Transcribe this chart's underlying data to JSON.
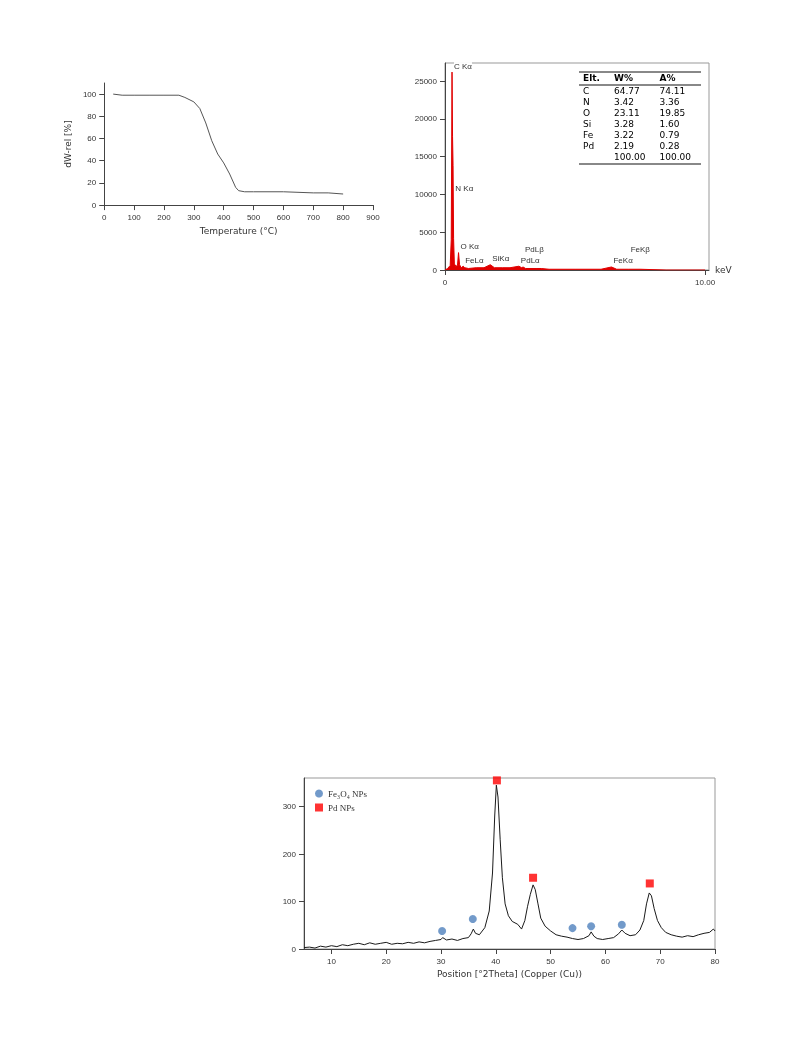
{
  "chart_data": [
    {
      "type": "line",
      "xlabel": "Temperature (°C)",
      "ylabel": "dW-rel [%]",
      "color": "#555555",
      "x": [
        30,
        60,
        100,
        150,
        200,
        250,
        270,
        300,
        320,
        340,
        360,
        380,
        400,
        420,
        440,
        450,
        470,
        500,
        600,
        700,
        750,
        800
      ],
      "values": [
        100,
        99,
        99,
        99,
        99,
        99,
        97,
        93,
        87,
        74,
        58,
        46,
        38,
        28,
        16,
        13,
        12,
        12,
        12,
        11,
        11,
        10
      ],
      "xlim": [
        0,
        900
      ],
      "xticks": [
        0,
        100,
        200,
        300,
        400,
        500,
        600,
        700,
        800,
        900
      ],
      "ylim": [
        0,
        110
      ],
      "yticks": [
        0,
        20,
        40,
        60,
        80,
        100
      ]
    },
    {
      "type": "area",
      "xlabel": "keV",
      "color": "#e00000",
      "x": [
        0,
        0.1,
        0.2,
        0.24,
        0.27,
        0.29,
        0.31,
        0.33,
        0.36,
        0.42,
        0.48,
        0.52,
        0.56,
        0.62,
        0.7,
        0.76,
        0.9,
        1.2,
        1.5,
        1.74,
        1.9,
        2.2,
        2.5,
        2.84,
        2.95,
        3.0,
        3.1,
        3.5,
        3.7,
        4,
        5,
        6,
        6.4,
        6.6,
        7.06,
        7.5,
        8.5,
        10
      ],
      "values": [
        0,
        200,
        600,
        4000,
        26200,
        17700,
        13800,
        4200,
        800,
        500,
        600,
        2300,
        700,
        300,
        500,
        300,
        200,
        300,
        300,
        700,
        300,
        300,
        300,
        500,
        300,
        400,
        200,
        200,
        200,
        100,
        100,
        100,
        400,
        100,
        100,
        100,
        0,
        0
      ],
      "xlim": [
        0,
        10.15
      ],
      "xticks": [
        0,
        {
          "value": 10,
          "label": "10.00"
        }
      ],
      "ylim": [
        0,
        27400
      ],
      "yticks": [
        0,
        5000,
        10000,
        15000,
        20000,
        25000
      ],
      "annotations": [
        {
          "text": "C Kα",
          "x": 0.27,
          "y": 26200
        },
        {
          "text": "N Kα",
          "x": 0.32,
          "y": 10000
        },
        {
          "text": "O Kα",
          "x": 0.52,
          "y": 2300
        },
        {
          "text": "FeLα",
          "x": 0.7,
          "y": 500
        },
        {
          "text": "SiKα",
          "x": 1.74,
          "y": 700
        },
        {
          "text": "PdLα",
          "x": 2.84,
          "y": 500
        },
        {
          "text": "PdLβ",
          "x": 3.0,
          "y": 400
        },
        {
          "text": "FeKα",
          "x": 6.4,
          "y": 400
        },
        {
          "text": "FeKβ",
          "x": 7.06,
          "y": 100
        },
        "Elt. W% A%",
        "C 64.77 74.11",
        "N 3.42 3.36",
        "O 23.11 19.85",
        "Si 3.28 1.60",
        "Fe 3.22 0.79",
        "Pd 2.19 0.28",
        "100.00 100.00"
      ]
    },
    {
      "type": "line",
      "xlabel": "Position [°2Theta] (Copper (Cu))",
      "legend": "top left",
      "xlim": [
        5,
        80
      ],
      "xticks": [
        10,
        20,
        30,
        40,
        50,
        60,
        70,
        80
      ],
      "ylim": [
        0,
        360
      ],
      "yticks": [
        0,
        100,
        200,
        300
      ],
      "series": [
        {
          "type": "line",
          "color": "#1a1a1a",
          "x": [
            5,
            6,
            7,
            8,
            9,
            10,
            11,
            12,
            13,
            14,
            15,
            16,
            17,
            18,
            19,
            20,
            21,
            22,
            23,
            24,
            25,
            26,
            27,
            28,
            29,
            30,
            30.3,
            31,
            32,
            33,
            34,
            35,
            35.5,
            35.9,
            36.3,
            37,
            38,
            38.8,
            39.4,
            39.8,
            40.1,
            40.4,
            40.8,
            41.2,
            41.7,
            42.3,
            43,
            44,
            44.7,
            45.3,
            45.8,
            46.3,
            46.8,
            47.2,
            47.7,
            48.2,
            49,
            50,
            51,
            52,
            53,
            54,
            55,
            56,
            57,
            57.4,
            57.9,
            58.5,
            59.5,
            60.5,
            61.5,
            62.4,
            63,
            63.6,
            64.5,
            65.5,
            66.3,
            67,
            67.5,
            68,
            68.4,
            68.9,
            69.5,
            70.2,
            71,
            72,
            73,
            74,
            75,
            76,
            77,
            78,
            79,
            79.7,
            80
          ],
          "values": [
            3,
            4,
            2,
            6,
            4,
            7,
            5,
            9,
            7,
            10,
            12,
            9,
            13,
            10,
            12,
            14,
            10,
            12,
            11,
            14,
            12,
            15,
            13,
            16,
            18,
            20,
            24,
            19,
            21,
            18,
            22,
            24,
            32,
            42,
            33,
            30,
            45,
            80,
            160,
            280,
            345,
            320,
            230,
            150,
            95,
            70,
            58,
            52,
            42,
            60,
            90,
            115,
            135,
            125,
            95,
            65,
            48,
            38,
            30,
            27,
            25,
            22,
            20,
            22,
            28,
            36,
            27,
            22,
            20,
            22,
            24,
            32,
            40,
            33,
            28,
            30,
            40,
            60,
            95,
            118,
            112,
            85,
            60,
            45,
            35,
            30,
            27,
            25,
            28,
            26,
            30,
            33,
            35,
            42,
            38
          ]
        },
        {
          "type": "scatter",
          "name": "Fe₃O₄ NPs",
          "color": "#4f81bd",
          "marker": "circle",
          "x": [
            30.2,
            35.8,
            54,
            57.4,
            63
          ],
          "values": [
            38,
            63,
            44,
            48,
            51
          ]
        },
        {
          "type": "scatter",
          "name": "Pd NPs",
          "color": "#ff0000",
          "marker": "square",
          "x": [
            40.2,
            46.8,
            68.1
          ],
          "values": [
            355,
            150,
            138
          ]
        }
      ]
    }
  ]
}
